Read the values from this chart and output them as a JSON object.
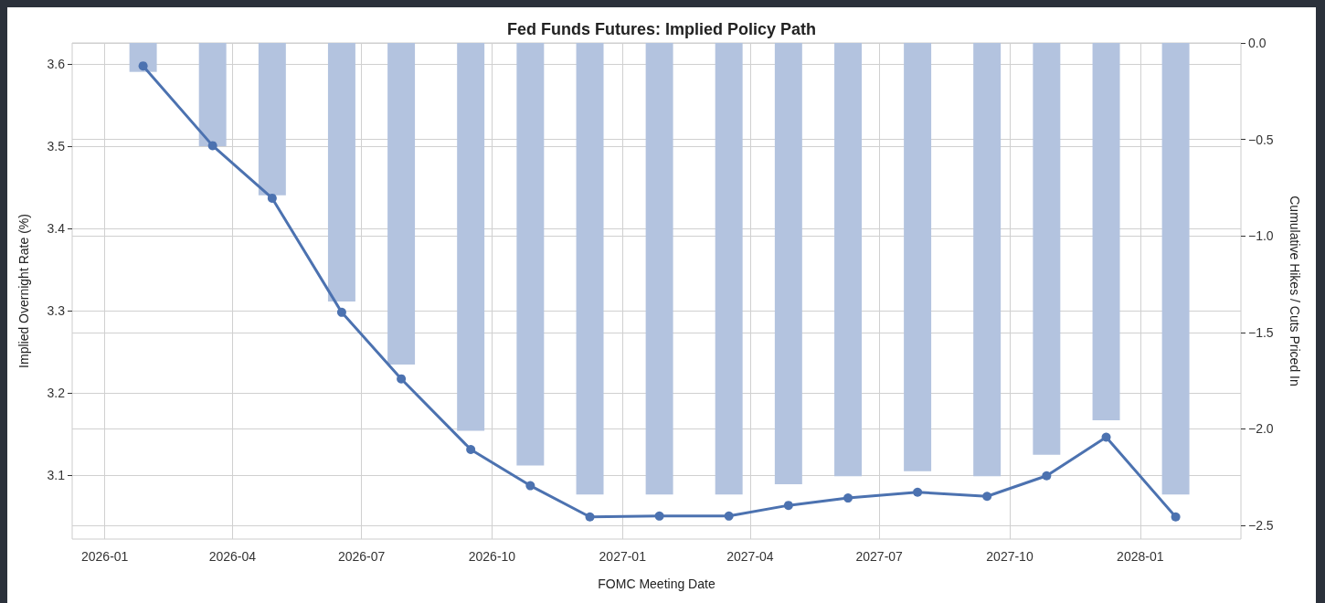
{
  "chart_data": {
    "type": "bar",
    "title": "Fed Funds Futures: Implied Policy Path",
    "xlabel": "FOMC Meeting Date",
    "ylabel": "Implied Overnight Rate (%)",
    "y2label": "Cumulative Hikes / Cuts Priced In",
    "x": [
      "2026-01-28",
      "2026-03-18",
      "2026-04-29",
      "2026-06-17",
      "2026-07-29",
      "2026-09-16",
      "2026-10-28",
      "2026-12-09",
      "2027-01-27",
      "2027-03-17",
      "2027-04-28",
      "2027-06-09",
      "2027-07-28",
      "2027-09-15",
      "2027-10-27",
      "2027-12-08",
      "2028-01-26"
    ],
    "series": [
      {
        "axis": "y2",
        "color": "#b3c3df",
        "values": [
          -0.15,
          -0.535,
          -0.789,
          -1.34,
          -1.667,
          -2.01,
          -2.19,
          -2.34,
          -2.34,
          -2.34,
          -2.287,
          -2.245,
          -2.22,
          -2.245,
          -2.134,
          -1.956,
          -2.34
        ]
      },
      {
        "type": "line",
        "axis": "y",
        "color": "#4c72b0",
        "marker": "circle",
        "line_style": "solid",
        "values": [
          3.598,
          3.501,
          3.437,
          3.298,
          3.217,
          3.131,
          3.087,
          3.049,
          3.05,
          3.05,
          3.063,
          3.072,
          3.079,
          3.074,
          3.099,
          3.146,
          3.049
        ]
      }
    ],
    "xlim": [
      "2025-12-09",
      "2028-03-12"
    ],
    "xticks": [
      "2026-01",
      "2026-04",
      "2026-07",
      "2026-10",
      "2027-01",
      "2027-04",
      "2027-07",
      "2027-10",
      "2028-01"
    ],
    "ylim": [
      3.022,
      3.626
    ],
    "yticks": [
      3.1,
      3.2,
      3.3,
      3.4,
      3.5,
      3.6
    ],
    "y2lim": [
      -2.571,
      0
    ],
    "y2ticks": [
      {
        "value": 0,
        "label": "0.0"
      },
      {
        "value": -0.5,
        "label": "−0.5"
      },
      {
        "value": -1,
        "label": "−1.0"
      },
      {
        "value": -1.5,
        "label": "−1.5"
      },
      {
        "value": -2,
        "label": "−2.0"
      },
      {
        "value": -2.5,
        "label": "−2.5"
      }
    ],
    "grid": true
  }
}
